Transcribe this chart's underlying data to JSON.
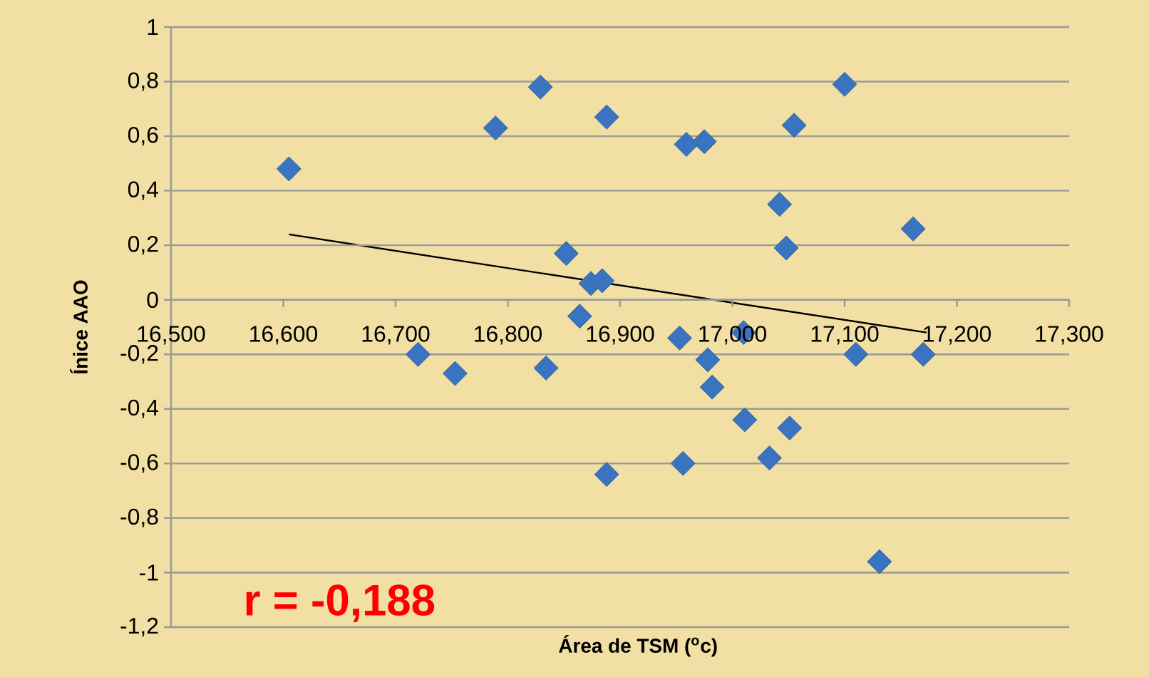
{
  "chart_data": {
    "type": "scatter",
    "xlabel": "Área de TSM ($^{o}$c)",
    "ylabel": "Ínice AAO",
    "annotations": [
      "r = -0,188"
    ],
    "xlim": [
      16.5,
      17.3
    ],
    "ylim": [
      -1.2,
      1
    ],
    "xticks": [
      {
        "value": 16.5,
        "label": "16,500"
      },
      {
        "value": 16.6,
        "label": "16,600"
      },
      {
        "value": 16.7,
        "label": "16,700"
      },
      {
        "value": 16.8,
        "label": "16,800"
      },
      {
        "value": 16.9,
        "label": "16,900"
      },
      {
        "value": 17.0,
        "label": "17,000"
      },
      {
        "value": 17.1,
        "label": "17,100"
      },
      {
        "value": 17.2,
        "label": "17,200"
      },
      {
        "value": 17.3,
        "label": "17,300"
      }
    ],
    "yticks": [
      {
        "value": -1.2,
        "label": "-1,2"
      },
      -1,
      {
        "value": -0.8,
        "label": "-0,8"
      },
      {
        "value": -0.6,
        "label": "-0,6"
      },
      {
        "value": -0.4,
        "label": "-0,4"
      },
      {
        "value": -0.2,
        "label": "-0,2"
      },
      0,
      {
        "value": 0.2,
        "label": "0,2"
      },
      {
        "value": 0.4,
        "label": "0,4"
      },
      {
        "value": 0.6,
        "label": "0,6"
      },
      {
        "value": 0.8,
        "label": "0,8"
      },
      1
    ],
    "grid": "y",
    "marker": "diamond",
    "series": [
      {
        "color": "#3a73bf",
        "x": [
          16.605,
          16.72,
          16.753,
          16.789,
          16.829,
          16.834,
          16.852,
          16.864,
          16.874,
          16.884,
          16.888,
          16.888,
          16.959,
          16.975,
          16.953,
          16.956,
          16.978,
          16.982,
          17.01,
          17.011,
          17.033,
          17.051,
          17.042,
          17.048,
          17.055,
          17.1,
          17.11,
          17.131,
          17.161,
          17.17
        ],
        "values": [
          0.48,
          -0.2,
          -0.27,
          0.63,
          0.78,
          -0.25,
          0.17,
          -0.06,
          0.06,
          0.07,
          0.67,
          -0.64,
          0.57,
          0.58,
          -0.14,
          -0.6,
          -0.22,
          -0.32,
          -0.12,
          -0.44,
          -0.58,
          -0.47,
          0.35,
          0.19,
          0.64,
          0.79,
          -0.2,
          -0.96,
          0.26,
          -0.2
        ]
      },
      {
        "type": "line",
        "color": "#000000",
        "marker": "none",
        "x": [
          16.605,
          17.173
        ],
        "values": [
          0.24,
          -0.12
        ]
      }
    ]
  }
}
